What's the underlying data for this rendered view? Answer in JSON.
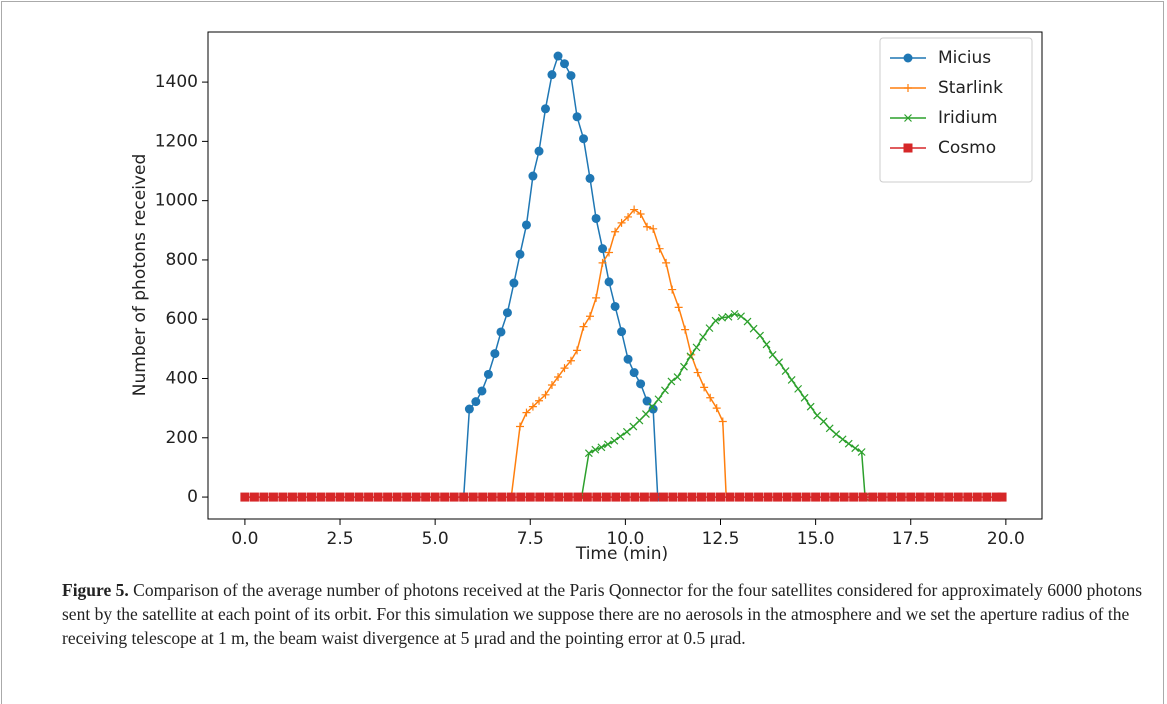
{
  "chart_data": {
    "type": "line",
    "xlabel": "Time (min)",
    "ylabel": "Number of photons received",
    "xlim": [
      -0.97,
      20.95
    ],
    "ylim": [
      -74,
      1569
    ],
    "xticks": [
      {
        "value": 0,
        "label": "0.0"
      },
      2.5,
      {
        "value": 5,
        "label": "5.0"
      },
      7.5,
      {
        "value": 10,
        "label": "10.0"
      },
      12.5,
      {
        "value": 15,
        "label": "15.0"
      },
      17.5,
      {
        "value": 20,
        "label": "20.0"
      }
    ],
    "yticks": [
      0,
      200,
      400,
      600,
      800,
      1000,
      1200,
      1400
    ],
    "legend": "upper right",
    "series": [
      {
        "name": "Micius",
        "color": "#1f77b4",
        "marker": "o",
        "x": [
          5.75,
          5.9,
          6.07,
          6.23,
          6.4,
          6.57,
          6.73,
          6.9,
          7.07,
          7.23,
          7.4,
          7.57,
          7.73,
          7.9,
          8.07,
          8.23,
          8.4,
          8.57,
          8.73,
          8.9,
          9.07,
          9.23,
          9.4,
          9.57,
          9.73,
          9.9,
          10.07,
          10.23,
          10.4,
          10.57,
          10.73,
          10.85
        ],
        "values": [
          0,
          297,
          322,
          358,
          414,
          484,
          557,
          622,
          722,
          819,
          918,
          1083,
          1167,
          1310,
          1425,
          1488,
          1462,
          1422,
          1283,
          1209,
          1075,
          940,
          838,
          726,
          643,
          558,
          465,
          420,
          382,
          324,
          297,
          0
        ]
      },
      {
        "name": "Starlink",
        "color": "#ff7f0e",
        "marker": "+",
        "x": [
          7.0,
          7.23,
          7.4,
          7.57,
          7.73,
          7.9,
          8.07,
          8.23,
          8.4,
          8.57,
          8.73,
          8.9,
          9.07,
          9.23,
          9.4,
          9.57,
          9.73,
          9.9,
          10.07,
          10.23,
          10.4,
          10.57,
          10.73,
          10.9,
          11.07,
          11.23,
          11.4,
          11.57,
          11.73,
          11.9,
          12.07,
          12.23,
          12.4,
          12.56,
          12.65
        ],
        "values": [
          0,
          238,
          285,
          305,
          325,
          345,
          378,
          405,
          435,
          460,
          495,
          575,
          610,
          672,
          790,
          825,
          895,
          925,
          945,
          970,
          955,
          912,
          905,
          838,
          790,
          700,
          640,
          565,
          480,
          420,
          370,
          335,
          300,
          255,
          0
        ]
      },
      {
        "name": "Iridium",
        "color": "#2ca02c",
        "marker": "x",
        "x": [
          8.85,
          9.04,
          9.21,
          9.37,
          9.54,
          9.71,
          9.87,
          10.04,
          10.21,
          10.37,
          10.54,
          10.71,
          10.87,
          11.04,
          11.21,
          11.37,
          11.54,
          11.71,
          11.87,
          12.04,
          12.21,
          12.37,
          12.54,
          12.71,
          12.87,
          13.04,
          13.21,
          13.37,
          13.54,
          13.71,
          13.87,
          14.04,
          14.21,
          14.37,
          14.54,
          14.71,
          14.87,
          15.04,
          15.21,
          15.37,
          15.54,
          15.71,
          15.87,
          16.04,
          16.21,
          16.3
        ],
        "values": [
          0,
          148,
          160,
          168,
          178,
          190,
          205,
          220,
          238,
          258,
          280,
          305,
          330,
          360,
          390,
          405,
          440,
          475,
          505,
          540,
          570,
          595,
          605,
          608,
          618,
          610,
          592,
          568,
          545,
          515,
          480,
          455,
          425,
          395,
          365,
          335,
          305,
          275,
          255,
          232,
          212,
          195,
          180,
          165,
          152,
          0
        ]
      },
      {
        "name": "Cosmo",
        "color": "#d62728",
        "marker": "s",
        "x": [
          0,
          0.25,
          0.5,
          0.75,
          1,
          1.25,
          1.5,
          1.75,
          2,
          2.25,
          2.5,
          2.75,
          3,
          3.25,
          3.5,
          3.75,
          4,
          4.25,
          4.5,
          4.75,
          5,
          5.25,
          5.5,
          5.75,
          6,
          6.25,
          6.5,
          6.75,
          7,
          7.25,
          7.5,
          7.75,
          8,
          8.25,
          8.5,
          8.75,
          9,
          9.25,
          9.5,
          9.75,
          10,
          10.25,
          10.5,
          10.75,
          11,
          11.25,
          11.5,
          11.75,
          12,
          12.25,
          12.5,
          12.75,
          13,
          13.25,
          13.5,
          13.75,
          14,
          14.25,
          14.5,
          14.75,
          15,
          15.25,
          15.5,
          15.75,
          16,
          16.25,
          16.5,
          16.75,
          17,
          17.25,
          17.5,
          17.75,
          18,
          18.25,
          18.5,
          18.75,
          19,
          19.25,
          19.5,
          19.75,
          19.9
        ],
        "values": [
          0,
          0,
          0,
          0,
          0,
          0,
          0,
          0,
          0,
          0,
          0,
          0,
          0,
          0,
          0,
          0,
          0,
          0,
          0,
          0,
          0,
          0,
          0,
          0,
          0,
          0,
          0,
          0,
          0,
          0,
          0,
          0,
          0,
          0,
          0,
          0,
          0,
          0,
          0,
          0,
          0,
          0,
          0,
          0,
          0,
          0,
          0,
          0,
          0,
          0,
          0,
          0,
          0,
          0,
          0,
          0,
          0,
          0,
          0,
          0,
          0,
          0,
          0,
          0,
          0,
          0,
          0,
          0,
          0,
          0,
          0,
          0,
          0,
          0,
          0,
          0,
          0,
          0,
          0,
          0,
          0
        ]
      }
    ],
    "caption": {
      "label": "Figure 5.",
      "text": "Comparison of the average number of photons received at the Paris Qonnector for the four satellites considered for approximately 6000 photons sent by the satellite at each point of its orbit. For this simulation we suppose there are no aerosols in the atmosphere and we set the aperture radius of the receiving telescope at 1 m, the beam waist divergence at 5 μrad and the pointing error at 0.5 μrad."
    }
  }
}
